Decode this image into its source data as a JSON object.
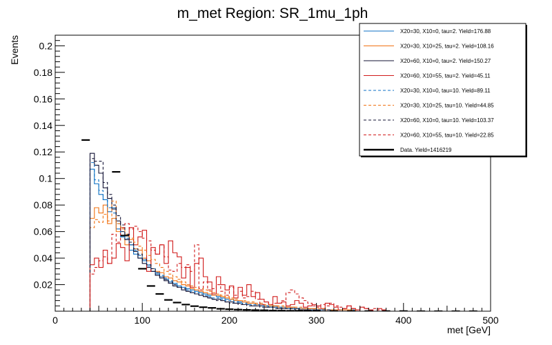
{
  "chart_data": {
    "type": "histogram",
    "title": "m_met Region: SR_1mu_1ph",
    "xlabel": "met [GeV]",
    "ylabel": "Events",
    "xlim": [
      0,
      500
    ],
    "ylim": [
      0,
      0.208
    ],
    "bin_width": 5,
    "x_ticks": [
      0,
      100,
      200,
      300,
      400,
      500
    ],
    "y_ticks": [
      0.02,
      0.04,
      0.06,
      0.08,
      0.1,
      0.12,
      0.14,
      0.16,
      0.18,
      0.2
    ],
    "y_tick_labels": [
      "0.02",
      "0.04",
      "0.06",
      "0.08",
      "0.1",
      "0.12",
      "0.14",
      "0.16",
      "0.18",
      "0.2"
    ],
    "legend_position": "top-right",
    "series": [
      {
        "name": "X20=30, X10=0, tau=2. Yield=176.88",
        "color": "#0b6fc4",
        "style": "solid",
        "x_start": 40,
        "values": [
          0.107,
          0.096,
          0.088,
          0.084,
          0.075,
          0.078,
          0.062,
          0.056,
          0.054,
          0.046,
          0.043,
          0.04,
          0.038,
          0.034,
          0.03,
          0.028,
          0.026,
          0.024,
          0.022,
          0.021,
          0.019,
          0.018,
          0.017,
          0.016,
          0.015,
          0.014,
          0.013,
          0.012,
          0.012,
          0.011,
          0.01,
          0.009,
          0.009,
          0.008,
          0.007,
          0.007,
          0.006,
          0.006,
          0.005,
          0.005,
          0.004,
          0.004,
          0.004,
          0.003,
          0.003,
          0.003,
          0.003,
          0.002,
          0.002,
          0.002,
          0.002,
          0.002,
          0.001,
          0.001,
          0.001,
          0.001,
          0.001,
          0.001,
          0.001,
          0.001,
          0.001,
          0.0,
          0.0,
          0.0,
          0.0,
          0.0,
          0.0,
          0.0
        ]
      },
      {
        "name": "X20=30, X10=25, tau=2. Yield=108.16",
        "color": "#f07010",
        "style": "solid",
        "x_start": 40,
        "values": [
          0.07,
          0.078,
          0.074,
          0.08,
          0.066,
          0.07,
          0.06,
          0.063,
          0.05,
          0.054,
          0.047,
          0.046,
          0.04,
          0.038,
          0.032,
          0.03,
          0.029,
          0.026,
          0.025,
          0.023,
          0.022,
          0.02,
          0.019,
          0.017,
          0.016,
          0.015,
          0.014,
          0.013,
          0.012,
          0.012,
          0.011,
          0.01,
          0.009,
          0.008,
          0.008,
          0.007,
          0.006,
          0.006,
          0.005,
          0.005,
          0.004,
          0.004,
          0.004,
          0.003,
          0.003,
          0.003,
          0.003,
          0.002,
          0.002,
          0.002,
          0.002,
          0.002,
          0.001,
          0.001,
          0.001,
          0.001,
          0.001,
          0.001,
          0.001,
          0.001,
          0.0,
          0.0,
          0.0,
          0.0,
          0.0,
          0.0,
          0.0,
          0.0
        ]
      },
      {
        "name": "X20=60, X10=0, tau=2. Yield=150.27",
        "color": "#111133",
        "style": "solid",
        "x_start": 40,
        "values": [
          0.119,
          0.11,
          0.104,
          0.093,
          0.085,
          0.077,
          0.068,
          0.06,
          0.054,
          0.05,
          0.045,
          0.04,
          0.036,
          0.033,
          0.03,
          0.027,
          0.025,
          0.023,
          0.021,
          0.019,
          0.018,
          0.016,
          0.015,
          0.014,
          0.013,
          0.012,
          0.011,
          0.01,
          0.009,
          0.009,
          0.008,
          0.007,
          0.007,
          0.006,
          0.006,
          0.005,
          0.005,
          0.004,
          0.004,
          0.004,
          0.003,
          0.003,
          0.003,
          0.002,
          0.002,
          0.002,
          0.002,
          0.002,
          0.001,
          0.001,
          0.001,
          0.001,
          0.001,
          0.001,
          0.001,
          0.001,
          0.0,
          0.0,
          0.0,
          0.0,
          0.0,
          0.0,
          0.0,
          0.0,
          0.0,
          0.0,
          0.0,
          0.0
        ]
      },
      {
        "name": "X20=60, X10=55, tau=2. Yield=45.11",
        "color": "#d01818",
        "style": "solid",
        "x_start": 40,
        "values": [
          0.035,
          0.04,
          0.033,
          0.046,
          0.036,
          0.04,
          0.051,
          0.048,
          0.038,
          0.063,
          0.05,
          0.056,
          0.061,
          0.03,
          0.048,
          0.043,
          0.05,
          0.036,
          0.053,
          0.044,
          0.041,
          0.025,
          0.033,
          0.018,
          0.036,
          0.04,
          0.026,
          0.022,
          0.013,
          0.026,
          0.02,
          0.016,
          0.019,
          0.01,
          0.018,
          0.012,
          0.02,
          0.011,
          0.014,
          0.009,
          0.007,
          0.005,
          0.011,
          0.006,
          0.007,
          0.004,
          0.005,
          0.008,
          0.006,
          0.003,
          0.004,
          0.005,
          0.004,
          0.002,
          0.006,
          0.005,
          0.003,
          0.001,
          0.002,
          0.004,
          0.002,
          0.001,
          0.003,
          0.002,
          0.001,
          0.0,
          0.002,
          0.001
        ]
      },
      {
        "name": "X20=30, X10=0, tau=10. Yield=89.11",
        "color": "#0b6fc4",
        "style": "dashed",
        "x_start": 40,
        "values": [
          0.112,
          0.099,
          0.091,
          0.084,
          0.078,
          0.074,
          0.066,
          0.06,
          0.055,
          0.05,
          0.046,
          0.042,
          0.039,
          0.035,
          0.032,
          0.029,
          0.027,
          0.025,
          0.023,
          0.021,
          0.019,
          0.018,
          0.016,
          0.015,
          0.014,
          0.013,
          0.012,
          0.011,
          0.01,
          0.01,
          0.009,
          0.008,
          0.008,
          0.007,
          0.006,
          0.006,
          0.005,
          0.005,
          0.005,
          0.004,
          0.004,
          0.003,
          0.003,
          0.003,
          0.003,
          0.002,
          0.002,
          0.002,
          0.002,
          0.002,
          0.001,
          0.001,
          0.001,
          0.001,
          0.001,
          0.001,
          0.001,
          0.001,
          0.0,
          0.0,
          0.0,
          0.0,
          0.0,
          0.0,
          0.0,
          0.0,
          0.0,
          0.0
        ]
      },
      {
        "name": "X20=30, X10=25, tau=10. Yield=44.85",
        "color": "#f07010",
        "style": "dashed",
        "x_start": 40,
        "values": [
          0.063,
          0.069,
          0.067,
          0.073,
          0.068,
          0.083,
          0.066,
          0.062,
          0.058,
          0.055,
          0.052,
          0.049,
          0.046,
          0.042,
          0.039,
          0.036,
          0.033,
          0.03,
          0.028,
          0.026,
          0.024,
          0.022,
          0.02,
          0.019,
          0.018,
          0.017,
          0.016,
          0.015,
          0.014,
          0.013,
          0.012,
          0.011,
          0.01,
          0.009,
          0.008,
          0.008,
          0.007,
          0.007,
          0.006,
          0.006,
          0.005,
          0.005,
          0.004,
          0.004,
          0.004,
          0.003,
          0.003,
          0.003,
          0.003,
          0.002,
          0.002,
          0.002,
          0.002,
          0.002,
          0.001,
          0.001,
          0.001,
          0.001,
          0.001,
          0.001,
          0.001,
          0.0,
          0.0,
          0.0,
          0.0,
          0.0,
          0.0,
          0.0
        ]
      },
      {
        "name": "X20=60, X10=0, tau=10. Yield=103.37",
        "color": "#111133",
        "style": "dashed",
        "x_start": 40,
        "values": [
          0.115,
          0.113,
          0.113,
          0.097,
          0.088,
          0.08,
          0.072,
          0.065,
          0.058,
          0.052,
          0.047,
          0.043,
          0.039,
          0.035,
          0.032,
          0.029,
          0.026,
          0.024,
          0.022,
          0.02,
          0.018,
          0.017,
          0.015,
          0.014,
          0.013,
          0.012,
          0.011,
          0.01,
          0.009,
          0.008,
          0.008,
          0.007,
          0.006,
          0.006,
          0.005,
          0.005,
          0.004,
          0.004,
          0.004,
          0.003,
          0.003,
          0.003,
          0.002,
          0.002,
          0.002,
          0.002,
          0.002,
          0.001,
          0.001,
          0.001,
          0.001,
          0.001,
          0.001,
          0.001,
          0.001,
          0.0,
          0.0,
          0.0,
          0.0,
          0.0,
          0.0,
          0.0,
          0.0,
          0.0,
          0.0,
          0.0,
          0.0,
          0.0
        ]
      },
      {
        "name": "X20=60, X10=55, tau=10. Yield=22.85",
        "color": "#d01818",
        "style": "dashed",
        "x_start": 40,
        "values": [
          0.028,
          0.033,
          0.038,
          0.041,
          0.036,
          0.058,
          0.052,
          0.063,
          0.066,
          0.062,
          0.064,
          0.06,
          0.055,
          0.053,
          0.046,
          0.043,
          0.05,
          0.041,
          0.031,
          0.03,
          0.036,
          0.033,
          0.035,
          0.03,
          0.05,
          0.016,
          0.022,
          0.016,
          0.017,
          0.02,
          0.015,
          0.012,
          0.018,
          0.012,
          0.015,
          0.01,
          0.011,
          0.015,
          0.009,
          0.005,
          0.007,
          0.005,
          0.006,
          0.006,
          0.008,
          0.014,
          0.016,
          0.013,
          0.01,
          0.008,
          0.006,
          0.004,
          0.003,
          0.005,
          0.004,
          0.006,
          0.004,
          0.003,
          0.002,
          0.004,
          0.002,
          0.001,
          0.003,
          0.002,
          0.001,
          0.002,
          0.001,
          0.001
        ]
      },
      {
        "name": "Data. Yield=1416219",
        "color": "#000000",
        "style": "data",
        "points": [
          [
            35,
            0.129
          ],
          [
            70,
            0.105
          ],
          [
            80,
            0.057
          ],
          [
            100,
            0.032
          ],
          [
            110,
            0.019
          ],
          [
            120,
            0.013
          ],
          [
            130,
            0.0085
          ],
          [
            140,
            0.0065
          ],
          [
            150,
            0.005
          ],
          [
            160,
            0.0038
          ],
          [
            170,
            0.003
          ],
          [
            180,
            0.0025
          ],
          [
            190,
            0.0018
          ],
          [
            200,
            0.0015
          ],
          [
            210,
            0.0012
          ],
          [
            220,
            0.001
          ],
          [
            230,
            0.0008
          ],
          [
            240,
            0.0007
          ],
          [
            250,
            0.0005
          ],
          [
            260,
            0.0004
          ],
          [
            270,
            0.0003
          ],
          [
            280,
            0.0003
          ],
          [
            290,
            0.0002
          ],
          [
            300,
            0.0002
          ],
          [
            320,
            0.0001
          ],
          [
            340,
            0.0001
          ],
          [
            360,
            0.0001
          ],
          [
            380,
            0.0001
          ],
          [
            400,
            0.0001
          ],
          [
            420,
            0.0
          ],
          [
            440,
            0.0
          ],
          [
            460,
            0.0
          ],
          [
            480,
            0.0
          ]
        ]
      }
    ]
  }
}
